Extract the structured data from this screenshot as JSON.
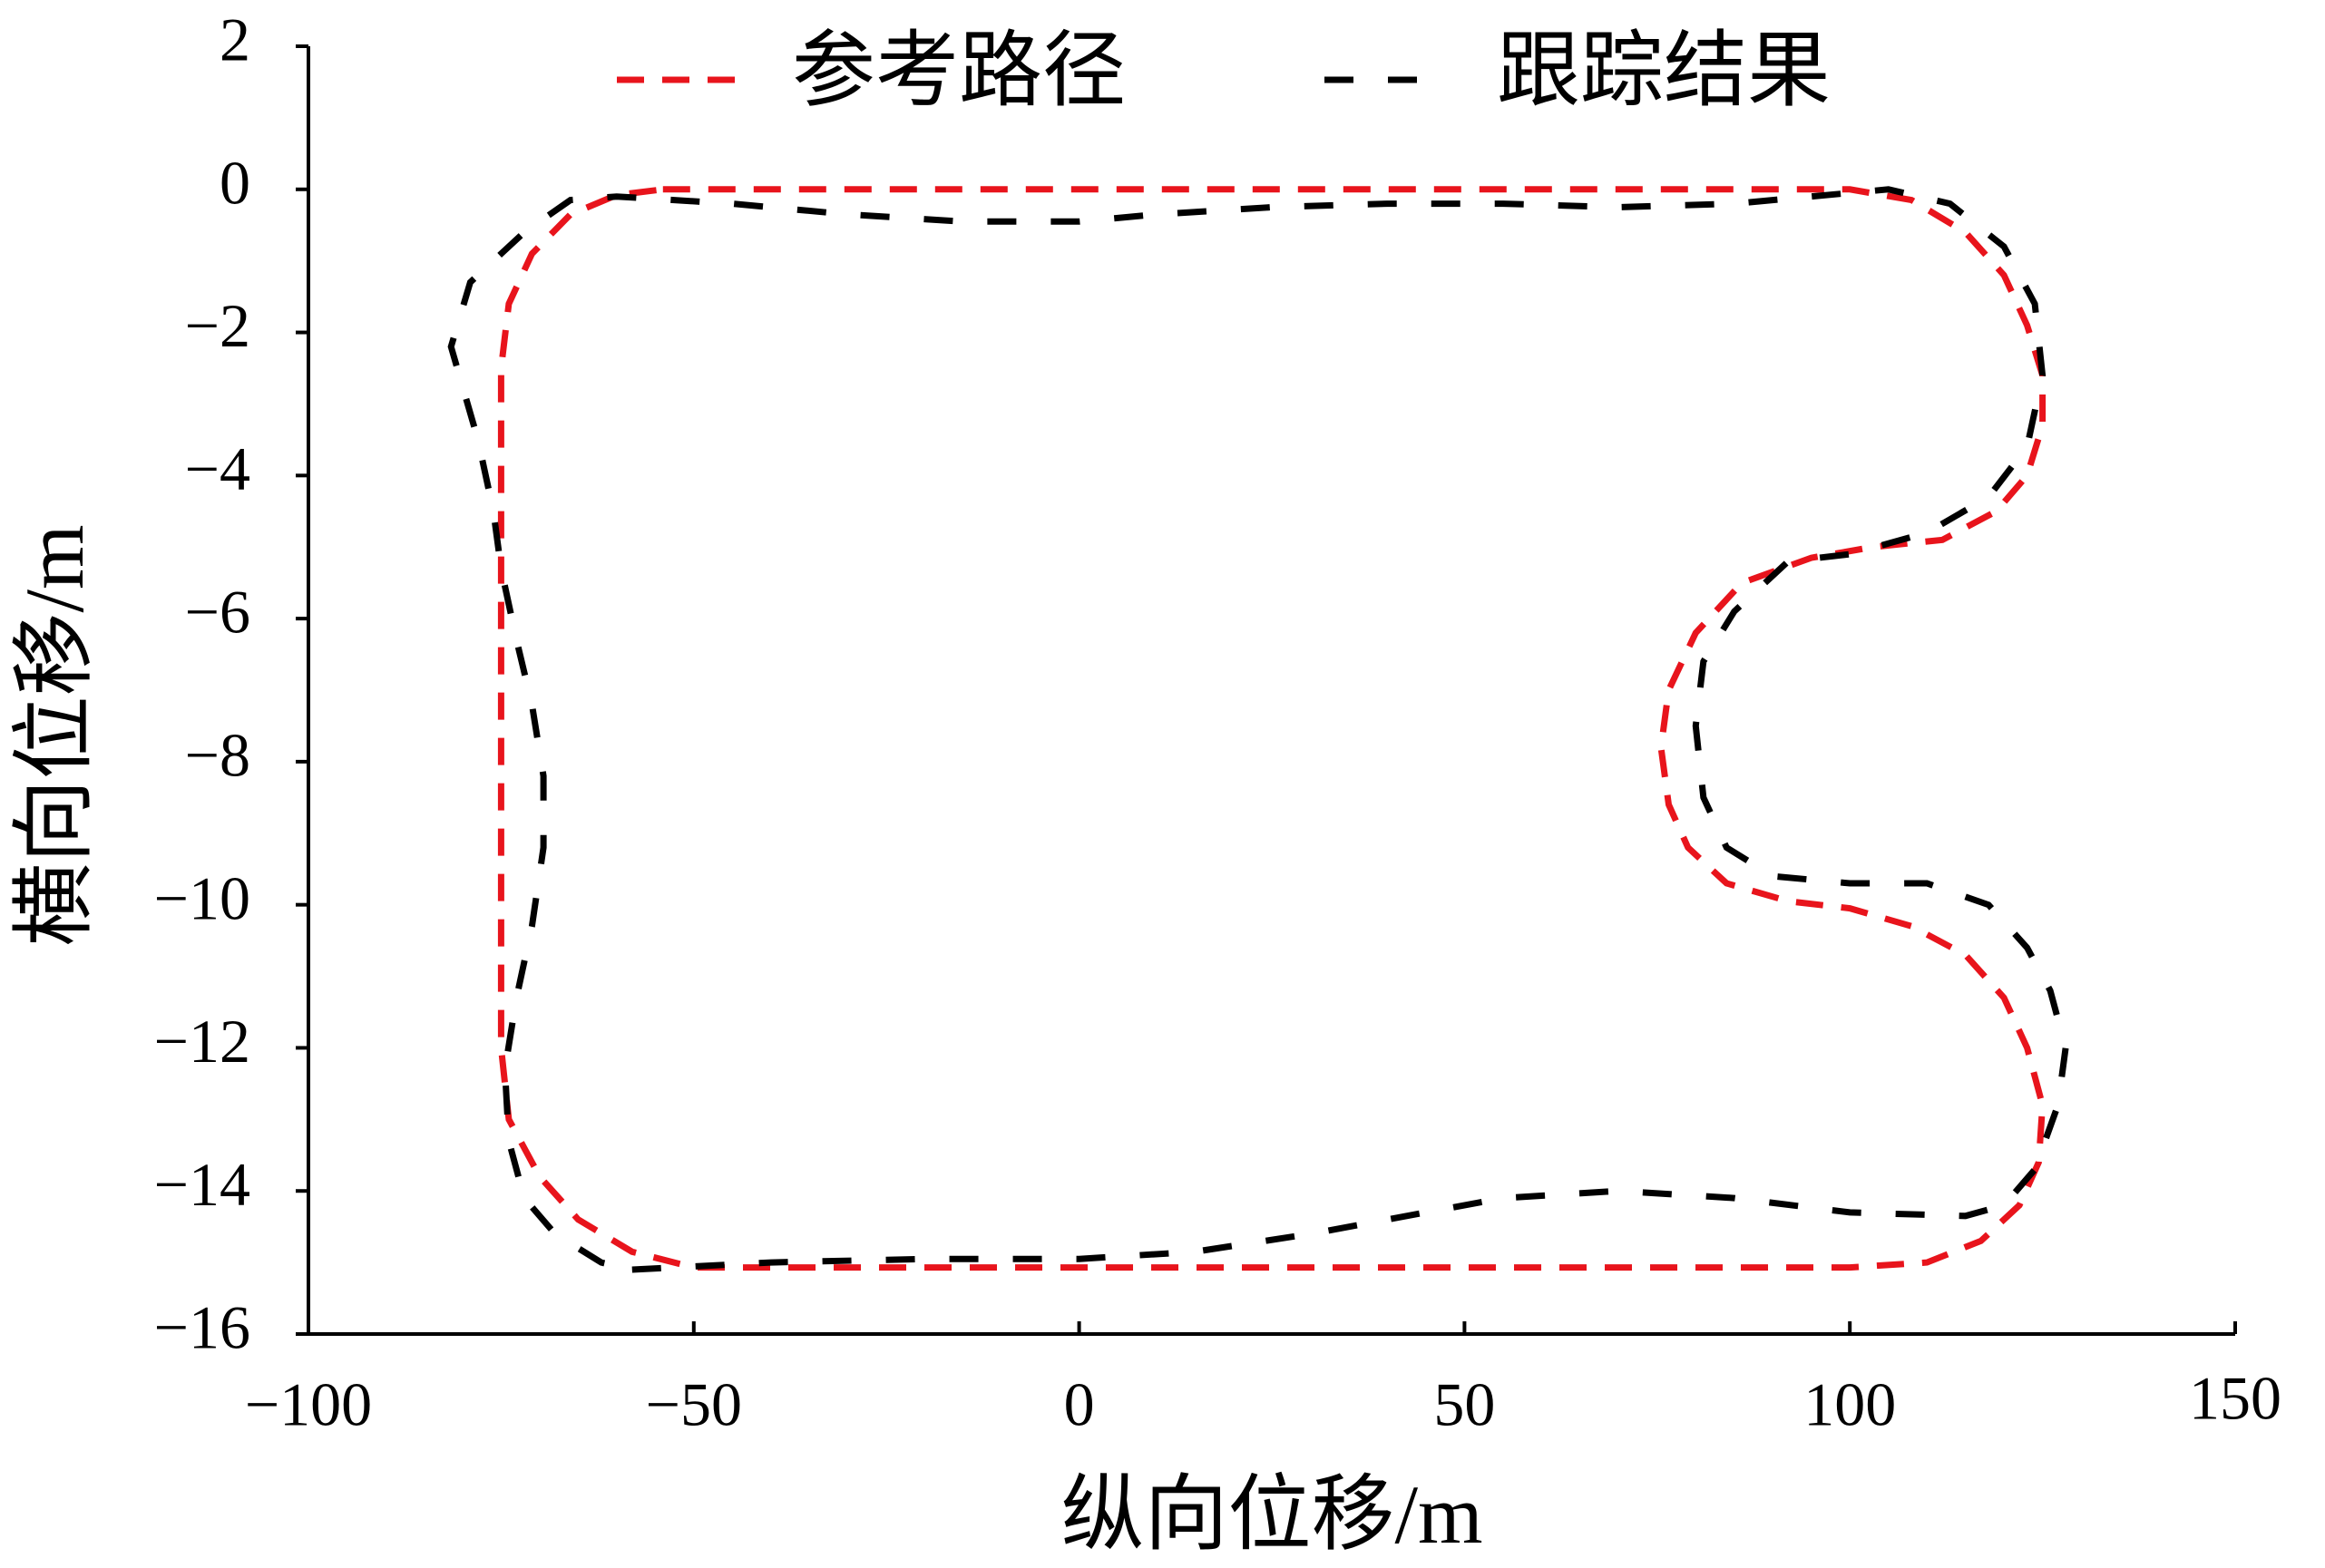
{
  "chart_data": {
    "type": "line",
    "xlabel": "纵向位移/m",
    "ylabel": "横向位移/m",
    "xlim": [
      -100,
      150
    ],
    "ylim": [
      -16,
      2
    ],
    "xticks": [
      {
        "value": -100,
        "label": "−100"
      },
      {
        "value": -50,
        "label": "−50"
      },
      0,
      50,
      100,
      150
    ],
    "yticks": [
      2,
      0,
      {
        "value": -2,
        "label": "−2"
      },
      {
        "value": -4,
        "label": "−4"
      },
      {
        "value": -6,
        "label": "−6"
      },
      {
        "value": -8,
        "label": "−8"
      },
      {
        "value": -10,
        "label": "−10"
      },
      {
        "value": -12,
        "label": "−12"
      },
      {
        "value": -14,
        "label": "−14"
      },
      {
        "value": -16,
        "label": "−16"
      }
    ],
    "grid": false,
    "legend": "top",
    "series": [
      {
        "name": "参考路径",
        "color": "#e8141c",
        "x": [
          -54,
          100,
          108,
          115,
          120,
          123,
          125,
          125,
          123,
          119,
          112,
          103,
          95,
          86,
          80,
          76.5,
          75.5,
          76.5,
          79,
          84,
          92,
          100,
          108,
          115,
          120,
          123,
          125,
          124.5,
          122,
          117,
          110,
          100,
          -50,
          -58,
          -65,
          -70,
          -74,
          -75,
          -75,
          -74,
          -71,
          -66,
          -60,
          -54
        ],
        "values": [
          0,
          0,
          -0.15,
          -0.6,
          -1.2,
          -1.9,
          -2.6,
          -3.3,
          -4.0,
          -4.5,
          -4.9,
          -5.0,
          -5.15,
          -5.5,
          -6.2,
          -7.0,
          -7.8,
          -8.6,
          -9.2,
          -9.7,
          -9.95,
          -10.05,
          -10.3,
          -10.7,
          -11.3,
          -12.0,
          -12.8,
          -13.6,
          -14.2,
          -14.7,
          -15.0,
          -15.07,
          -15.07,
          -14.85,
          -14.4,
          -13.8,
          -13.0,
          -12.0,
          -2.5,
          -1.6,
          -0.9,
          -0.35,
          -0.08,
          0
        ]
      },
      {
        "name": "跟踪结果",
        "color": "#000000",
        "x": [
          -58,
          -40,
          -20,
          0,
          15,
          30,
          45,
          55,
          70,
          85,
          100,
          115,
          120,
          124,
          127,
          128,
          126,
          123,
          118,
          110,
          100,
          90,
          84,
          81,
          80,
          81,
          85,
          92,
          100,
          110,
          118,
          123,
          125,
          124,
          120,
          113,
          105,
          95,
          85,
          70,
          55,
          40,
          25,
          10,
          0,
          -15,
          -30,
          -45,
          -60,
          -66,
          -72,
          -79,
          -81.5,
          -78,
          -76,
          -75,
          -73,
          -71,
          -69.5,
          -69.5,
          -71,
          -73,
          -74.5,
          -74,
          -72,
          -68,
          -62,
          -58
        ],
        "values": [
          -15.1,
          -15.0,
          -14.95,
          -14.95,
          -14.85,
          -14.6,
          -14.3,
          -14.1,
          -14.0,
          -14.1,
          -14.3,
          -14.35,
          -14.2,
          -13.7,
          -12.8,
          -12.0,
          -11.2,
          -10.6,
          -10.0,
          -9.7,
          -9.7,
          -9.6,
          -9.2,
          -8.5,
          -7.5,
          -6.6,
          -5.9,
          -5.2,
          -5.1,
          -4.8,
          -4.3,
          -3.6,
          -2.6,
          -1.6,
          -0.8,
          -0.2,
          0,
          -0.1,
          -0.2,
          -0.25,
          -0.2,
          -0.2,
          -0.25,
          -0.35,
          -0.45,
          -0.45,
          -0.35,
          -0.2,
          -0.1,
          -0.15,
          -0.6,
          -1.3,
          -2.2,
          -3.5,
          -4.5,
          -5.3,
          -6.3,
          -7.2,
          -8.2,
          -9.2,
          -10.3,
          -11.3,
          -12.3,
          -13.3,
          -14.1,
          -14.6,
          -15.0,
          -15.1
        ]
      }
    ]
  }
}
